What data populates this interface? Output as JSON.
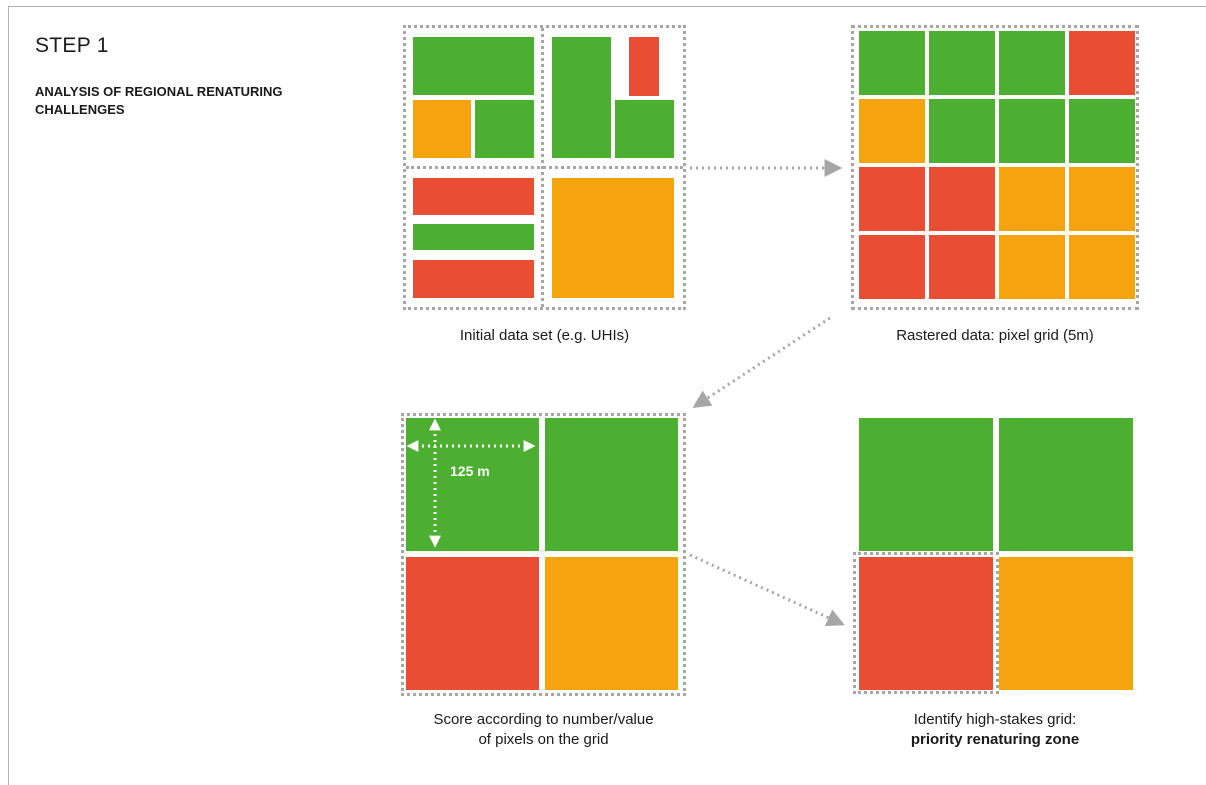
{
  "header": {
    "step": "STEP 1",
    "subtitle": "ANALYSIS OF REGIONAL RENATURING CHALLENGES"
  },
  "colors": {
    "green": "#4daf32",
    "orange": "#f5a30e",
    "red": "#e94e35",
    "dots": "#a6a6a6"
  },
  "captions": {
    "initial": "Initial data set (e.g. UHIs)",
    "rastered": "Rastered data: pixel grid (5m)",
    "score_line1": "Score according to number/value",
    "score_line2": "of pixels on the grid",
    "identify_line1": "Identify high-stakes grid:",
    "identify_line2": "priority renaturing zone"
  },
  "measure": {
    "label": "125 m"
  },
  "raster_grid": [
    [
      "green",
      "green",
      "green",
      "red"
    ],
    [
      "orange",
      "green",
      "green",
      "green"
    ],
    [
      "red",
      "red",
      "orange",
      "orange"
    ],
    [
      "red",
      "red",
      "orange",
      "orange"
    ]
  ],
  "score_grid": [
    [
      "green",
      "green"
    ],
    [
      "red",
      "orange"
    ]
  ],
  "priority_grid": [
    [
      "green",
      "green"
    ],
    [
      "red",
      "orange"
    ]
  ]
}
